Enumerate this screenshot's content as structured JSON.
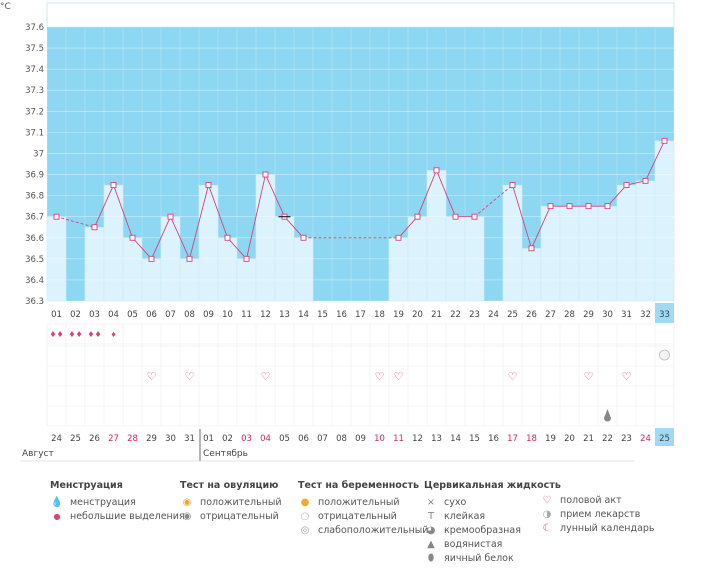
{
  "unit": "°C",
  "y_ticks": [
    "37.6",
    "37.5",
    "37.4",
    "37.3",
    "37.2",
    "37.1",
    "37",
    "36.9",
    "36.8",
    "36.7",
    "36.6",
    "36.5",
    "36.4",
    "36.3"
  ],
  "cycle_days": [
    "01",
    "02",
    "03",
    "04",
    "05",
    "06",
    "07",
    "08",
    "09",
    "10",
    "11",
    "12",
    "13",
    "14",
    "15",
    "16",
    "17",
    "18",
    "19",
    "20",
    "21",
    "22",
    "23",
    "24",
    "25",
    "26",
    "27",
    "28",
    "29",
    "30",
    "31",
    "32",
    "33"
  ],
  "dates": [
    "24",
    "25",
    "26",
    "27",
    "28",
    "29",
    "30",
    "31",
    "01",
    "02",
    "03",
    "04",
    "05",
    "06",
    "07",
    "08",
    "09",
    "10",
    "11",
    "12",
    "13",
    "14",
    "15",
    "16",
    "17",
    "18",
    "19",
    "20",
    "21",
    "22",
    "23",
    "24",
    "25"
  ],
  "red_date_indices": [
    3,
    4,
    10,
    11,
    17,
    18,
    24,
    25,
    31
  ],
  "months": {
    "august": "Август",
    "september": "Сентябрь"
  },
  "chart_data": {
    "type": "line",
    "ylabel": "°C",
    "ylim": [
      36.3,
      37.6
    ],
    "values": [
      36.7,
      null,
      36.65,
      36.85,
      36.6,
      36.5,
      36.7,
      36.5,
      36.85,
      36.6,
      36.5,
      36.9,
      36.7,
      36.6,
      null,
      null,
      null,
      null,
      36.6,
      36.7,
      36.92,
      36.7,
      36.7,
      null,
      36.85,
      36.55,
      36.75,
      36.75,
      36.75,
      36.75,
      36.85,
      36.87,
      37.06
    ],
    "dashed_segments": [
      [
        0,
        2
      ],
      [
        13,
        18
      ],
      [
        22,
        24
      ]
    ],
    "current_day_index": 32,
    "menstruation": {
      "heavy": [
        0,
        1,
        2
      ],
      "light": [
        3
      ]
    },
    "intercourse": [
      5,
      7,
      11,
      17,
      18,
      24,
      28,
      30
    ],
    "medication": [
      32
    ],
    "cervical_fluid_watery": [
      29
    ]
  },
  "legend": {
    "menstruation": {
      "title": "Менструация",
      "items": [
        "менструация",
        "небольшие выделения"
      ]
    },
    "ovulation": {
      "title": "Тест на овуляцию",
      "items": [
        "положительный",
        "отрицательный"
      ]
    },
    "pregnancy": {
      "title": "Тест на беременность",
      "items": [
        "положительный",
        "отрицательный",
        "слабоположительный"
      ]
    },
    "cervical": {
      "title": "Цервикальная жидкость",
      "items": [
        "сухо",
        "клейкая",
        "кремообразная",
        "водянистая",
        "яичный белок"
      ]
    },
    "other": {
      "items": [
        "половой акт",
        "прием лекарств",
        "лунный календарь"
      ]
    }
  },
  "colors": {
    "high_bg": "#8dd7f2",
    "bar_fill": "#dcf3fd",
    "line": "#d9417a",
    "today": "#9fd9f3",
    "red_text": "#d0265f"
  }
}
